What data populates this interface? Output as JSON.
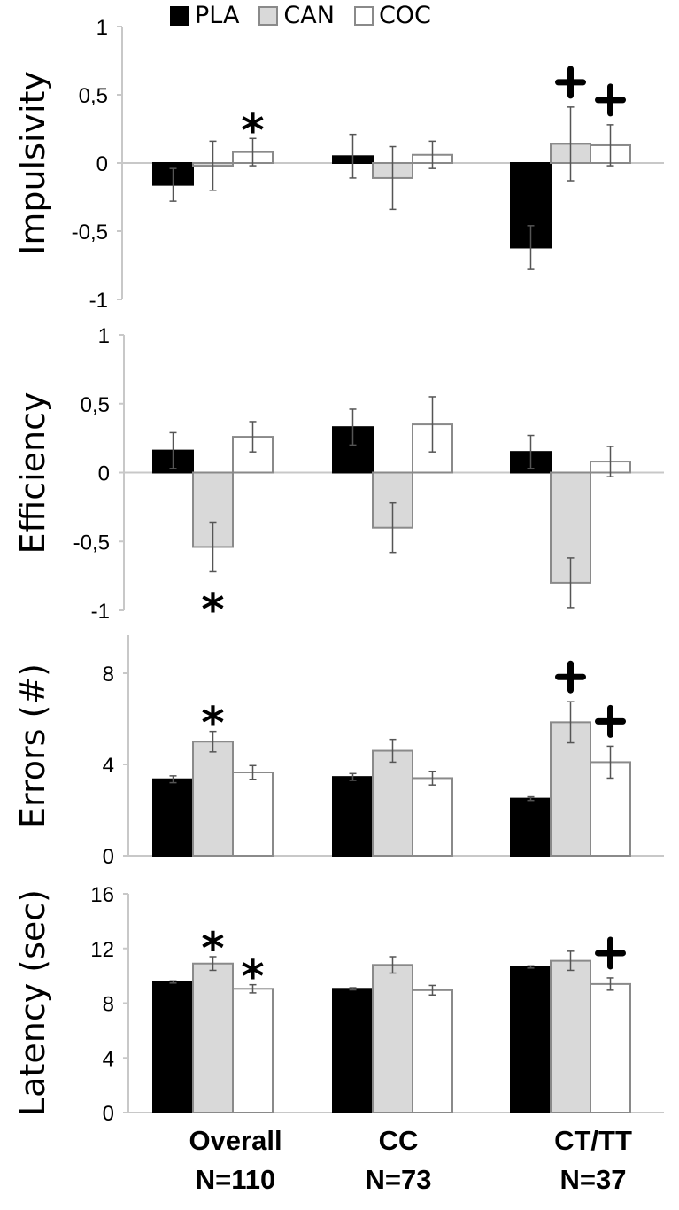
{
  "legend": [
    {
      "label": "PLA",
      "color": "#000000"
    },
    {
      "label": "CAN",
      "color": "#d9d9d9"
    },
    {
      "label": "COC",
      "color": "#ffffff"
    }
  ],
  "groups": [
    {
      "name": "Overall",
      "n": "N=110"
    },
    {
      "name": "CC",
      "n": "N=73"
    },
    {
      "name": "CT/TT",
      "n": "N=37"
    }
  ],
  "chart_data": [
    {
      "type": "bar",
      "ylabel": "Impulsivity",
      "categories": [
        "Overall",
        "CC",
        "CT/TT"
      ],
      "ylim": [
        -1,
        1
      ],
      "yticks": [
        1,
        0.5,
        0,
        -0.5,
        -1
      ],
      "ytick_labels": [
        "1",
        "0,5",
        "0",
        "-0,5",
        "-1"
      ],
      "series": [
        {
          "name": "PLA",
          "values": [
            -0.16,
            0.05,
            -0.62
          ],
          "err": [
            0.12,
            0.16,
            0.16
          ]
        },
        {
          "name": "CAN",
          "values": [
            -0.02,
            -0.11,
            0.14
          ],
          "err": [
            0.18,
            0.23,
            0.27
          ]
        },
        {
          "name": "COC",
          "values": [
            0.08,
            0.06,
            0.13
          ],
          "err": [
            0.1,
            0.1,
            0.15
          ]
        }
      ],
      "annotations": [
        {
          "group": 0,
          "series": 2,
          "mark": "*"
        },
        {
          "group": 2,
          "series": 1,
          "mark": "+"
        },
        {
          "group": 2,
          "series": 2,
          "mark": "+"
        }
      ]
    },
    {
      "type": "bar",
      "ylabel": "Efficiency",
      "categories": [
        "Overall",
        "CC",
        "CT/TT"
      ],
      "ylim": [
        -1,
        1
      ],
      "yticks": [
        1,
        0.5,
        0,
        -0.5,
        -1
      ],
      "ytick_labels": [
        "1",
        "0,5",
        "0",
        "-0,5",
        "-1"
      ],
      "series": [
        {
          "name": "PLA",
          "values": [
            0.16,
            0.33,
            0.15
          ],
          "err": [
            0.13,
            0.13,
            0.12
          ]
        },
        {
          "name": "CAN",
          "values": [
            -0.54,
            -0.4,
            -0.8
          ],
          "err": [
            0.18,
            0.18,
            0.18
          ]
        },
        {
          "name": "COC",
          "values": [
            0.26,
            0.35,
            0.08
          ],
          "err": [
            0.11,
            0.2,
            0.11
          ]
        }
      ],
      "annotations": [
        {
          "group": 0,
          "series": 1,
          "mark": "*",
          "below": true
        }
      ]
    },
    {
      "type": "bar",
      "ylabel": "Errors (#)",
      "categories": [
        "Overall",
        "CC",
        "CT/TT"
      ],
      "ylim": [
        0,
        10
      ],
      "yticks": [
        8,
        4,
        0
      ],
      "ytick_labels": [
        "8",
        "4",
        "0"
      ],
      "series": [
        {
          "name": "PLA",
          "values": [
            3.35,
            3.45,
            2.5
          ],
          "err": [
            0.15,
            0.15,
            0.08
          ]
        },
        {
          "name": "CAN",
          "values": [
            5.0,
            4.6,
            5.85
          ],
          "err": [
            0.45,
            0.5,
            0.9
          ]
        },
        {
          "name": "COC",
          "values": [
            3.65,
            3.4,
            4.1
          ],
          "err": [
            0.3,
            0.3,
            0.7
          ]
        }
      ],
      "annotations": [
        {
          "group": 0,
          "series": 1,
          "mark": "*"
        },
        {
          "group": 2,
          "series": 1,
          "mark": "+"
        },
        {
          "group": 2,
          "series": 2,
          "mark": "+"
        }
      ]
    },
    {
      "type": "bar",
      "ylabel": "Latency (sec)",
      "categories": [
        "Overall",
        "CC",
        "CT/TT"
      ],
      "ylim": [
        0,
        17
      ],
      "yticks": [
        16,
        12,
        8,
        4,
        0
      ],
      "ytick_labels": [
        "16",
        "12",
        "8",
        "4",
        "0"
      ],
      "series": [
        {
          "name": "PLA",
          "values": [
            9.55,
            9.05,
            10.65
          ],
          "err": [
            0.08,
            0.08,
            0.08
          ]
        },
        {
          "name": "CAN",
          "values": [
            10.9,
            10.8,
            11.1
          ],
          "err": [
            0.5,
            0.6,
            0.7
          ]
        },
        {
          "name": "COC",
          "values": [
            9.05,
            8.95,
            9.4
          ],
          "err": [
            0.3,
            0.35,
            0.45
          ]
        }
      ],
      "annotations": [
        {
          "group": 0,
          "series": 1,
          "mark": "*"
        },
        {
          "group": 0,
          "series": 2,
          "mark": "*"
        },
        {
          "group": 2,
          "series": 2,
          "mark": "+"
        }
      ]
    }
  ]
}
